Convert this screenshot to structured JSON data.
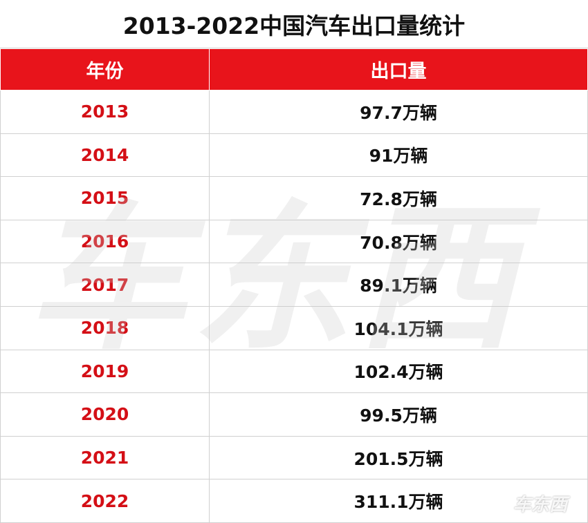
{
  "title": "2013-2022中国汽车出口量统计",
  "table": {
    "header": [
      "年份",
      "出口量"
    ],
    "rows": [
      [
        "2013",
        "97.7万辆"
      ],
      [
        "2014",
        "91万辆"
      ],
      [
        "2015",
        "72.8万辆"
      ],
      [
        "2016",
        "70.8万辆"
      ],
      [
        "2017",
        "89.1万辆"
      ],
      [
        "2018",
        "104.1万辆"
      ],
      [
        "2019",
        "102.4万辆"
      ],
      [
        "2020",
        "99.5万辆"
      ],
      [
        "2021",
        "201.5万辆"
      ],
      [
        "2022",
        "311.1万辆"
      ]
    ]
  },
  "watermark": "车东西"
}
